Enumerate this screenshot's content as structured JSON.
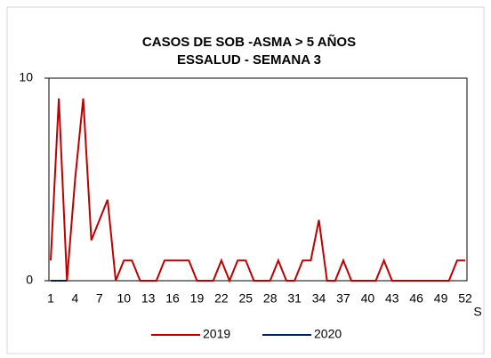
{
  "chart_data": {
    "type": "line",
    "title": [
      "CASOS DE SOB -ASMA > 5 AÑOS",
      "ESSALUD  - SEMANA 3"
    ],
    "x_label": "S",
    "categories": [
      1,
      null,
      null,
      4,
      null,
      null,
      7,
      null,
      null,
      10,
      null,
      null,
      13,
      null,
      null,
      16,
      null,
      null,
      19,
      null,
      null,
      22,
      null,
      null,
      25,
      null,
      null,
      28,
      null,
      null,
      31,
      null,
      null,
      34,
      null,
      null,
      37,
      null,
      null,
      40,
      null,
      null,
      43,
      null,
      null,
      46,
      null,
      null,
      49,
      null,
      null,
      52
    ],
    "series": [
      {
        "name": "2019",
        "color": "#c00000",
        "values": [
          1,
          9,
          0,
          5,
          9,
          2,
          3,
          4,
          0,
          1,
          1,
          0,
          0,
          0,
          1,
          1,
          1,
          1,
          0,
          0,
          0,
          1,
          0,
          1,
          1,
          0,
          0,
          0,
          1,
          0,
          0,
          1,
          1,
          3,
          0,
          0,
          1,
          0,
          0,
          0,
          0,
          1,
          0,
          0,
          0,
          0,
          0,
          0,
          0,
          0,
          1,
          1
        ]
      },
      {
        "name": "2020",
        "color": "#002060",
        "values": [
          0,
          0,
          0,
          null,
          null,
          null,
          null,
          null,
          null,
          null,
          null,
          null,
          null,
          null,
          null,
          null,
          null,
          null,
          null,
          null,
          null,
          null,
          null,
          null,
          null,
          null,
          null,
          null,
          null,
          null,
          null,
          null,
          null,
          null,
          null,
          null,
          null,
          null,
          null,
          null,
          null,
          null,
          null,
          null,
          null,
          null,
          null,
          null,
          null,
          null,
          null,
          null
        ]
      }
    ],
    "ylim": [
      0,
      10
    ],
    "yticks": [
      0,
      10
    ],
    "grid": false,
    "legend": "bottom"
  }
}
